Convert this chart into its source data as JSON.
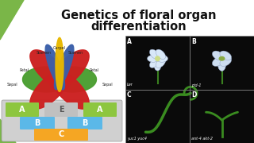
{
  "title_line1": "Genetics of floral organ",
  "title_line2": "differentiation",
  "title_fontsize": 10.5,
  "title_color": "#111111",
  "bg_color": "#ffffff",
  "green_color": "#7ab648",
  "A_color": "#8dc63f",
  "B_color": "#5bb8e8",
  "C_color": "#f5a623",
  "petal_red": "#cc2020",
  "petal_blue": "#3a5faa",
  "petal_yellow": "#e8b800",
  "petal_green": "#4a9e30",
  "photo_bg": "#0a0a0a",
  "photo_labels": [
    "A",
    "B",
    "C",
    "D"
  ],
  "photo_sublabels": [
    "Ler",
    "pid-1",
    "yuc1 yuc4",
    "ant-4 akt-2"
  ],
  "abc_bg": "#d0d0d0"
}
